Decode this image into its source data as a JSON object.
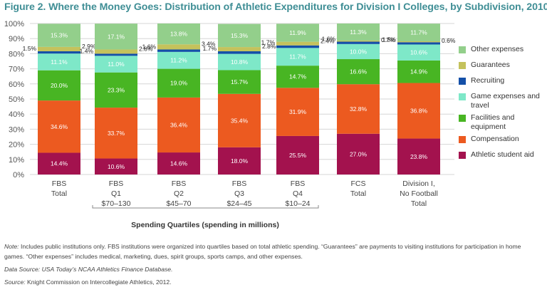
{
  "title": "Figure 2. Where the Money Goes: Distribution of Athletic Expenditures for Division I Colleges, by Subdivision, 2010",
  "chart_data": {
    "type": "bar",
    "stacked": true,
    "ylim": [
      0,
      100
    ],
    "yticks": [
      "0%",
      "10%",
      "20%",
      "30%",
      "40%",
      "50%",
      "60%",
      "70%",
      "80%",
      "90%",
      "100%"
    ],
    "categories": [
      [
        "FBS",
        "Total"
      ],
      [
        "FBS",
        "Q1",
        "$70–130"
      ],
      [
        "FBS",
        "Q2",
        "$45–70"
      ],
      [
        "FBS",
        "Q3",
        "$24–45"
      ],
      [
        "FBS",
        "Q4",
        "$10–24"
      ],
      [
        "FCS",
        "Total"
      ],
      [
        "Division I,",
        "No Football",
        "Total"
      ]
    ],
    "group_label": "Spending Quartiles (spending in millions)",
    "series": [
      {
        "name": "Athletic student aid",
        "color": "#a3124e",
        "values": [
          14.4,
          10.6,
          14.6,
          18.0,
          25.5,
          27.0,
          23.8
        ]
      },
      {
        "name": "Compensation",
        "color": "#ec5a20",
        "values": [
          34.6,
          33.7,
          36.4,
          35.4,
          31.9,
          32.8,
          36.8
        ]
      },
      {
        "name": "Facilities and equipment",
        "color": "#48b523",
        "values": [
          20.0,
          23.3,
          19.0,
          15.7,
          14.7,
          16.6,
          14.9
        ]
      },
      {
        "name": "Game expenses and travel",
        "color": "#7ee8c8",
        "values": [
          11.1,
          11.0,
          11.2,
          10.8,
          11.7,
          10.0,
          10.6
        ]
      },
      {
        "name": "Recruiting",
        "color": "#1450a8",
        "values": [
          1.5,
          1.4,
          1.6,
          1.7,
          1.7,
          1.6,
          1.5
        ]
      },
      {
        "name": "Guarantees",
        "color": "#c4c25c",
        "values": [
          2.9,
          2.8,
          3.4,
          2.8,
          2.4,
          0.7,
          0.6
        ]
      },
      {
        "name": "Other expenses",
        "color": "#93cf8b",
        "values": [
          15.3,
          17.1,
          13.8,
          15.3,
          11.9,
          11.3,
          11.7
        ]
      }
    ]
  },
  "legend": [
    {
      "label": "Other expenses",
      "color": "#93cf8b"
    },
    {
      "label": "Guarantees",
      "color": "#c4c25c"
    },
    {
      "label": "Recruiting",
      "color": "#1450a8"
    },
    {
      "label": "Game expenses and travel",
      "color": "#7ee8c8"
    },
    {
      "label": "Facilities and equipment",
      "color": "#48b523"
    },
    {
      "label": "Compensation",
      "color": "#ec5a20"
    },
    {
      "label": "Athletic student aid",
      "color": "#a3124e"
    }
  ],
  "notes": {
    "note_label": "Note:",
    "note_text": "Includes public institutions only. FBS institutions were organized into quartiles based on total athletic spending. “Guarantees” are payments to visiting institutions for participation in home games. “Other expenses” includes medical, marketing, dues, spirit groups, sports camps, and other expenses.",
    "data_source_label": "Data Source:",
    "data_source_italic": "USA Today",
    "data_source_rest": "’s NCAA Athletics Finance Database.",
    "source_label": "Source:",
    "source_text": "Knight Commission on Intercollegiate Athletics, 2012."
  }
}
